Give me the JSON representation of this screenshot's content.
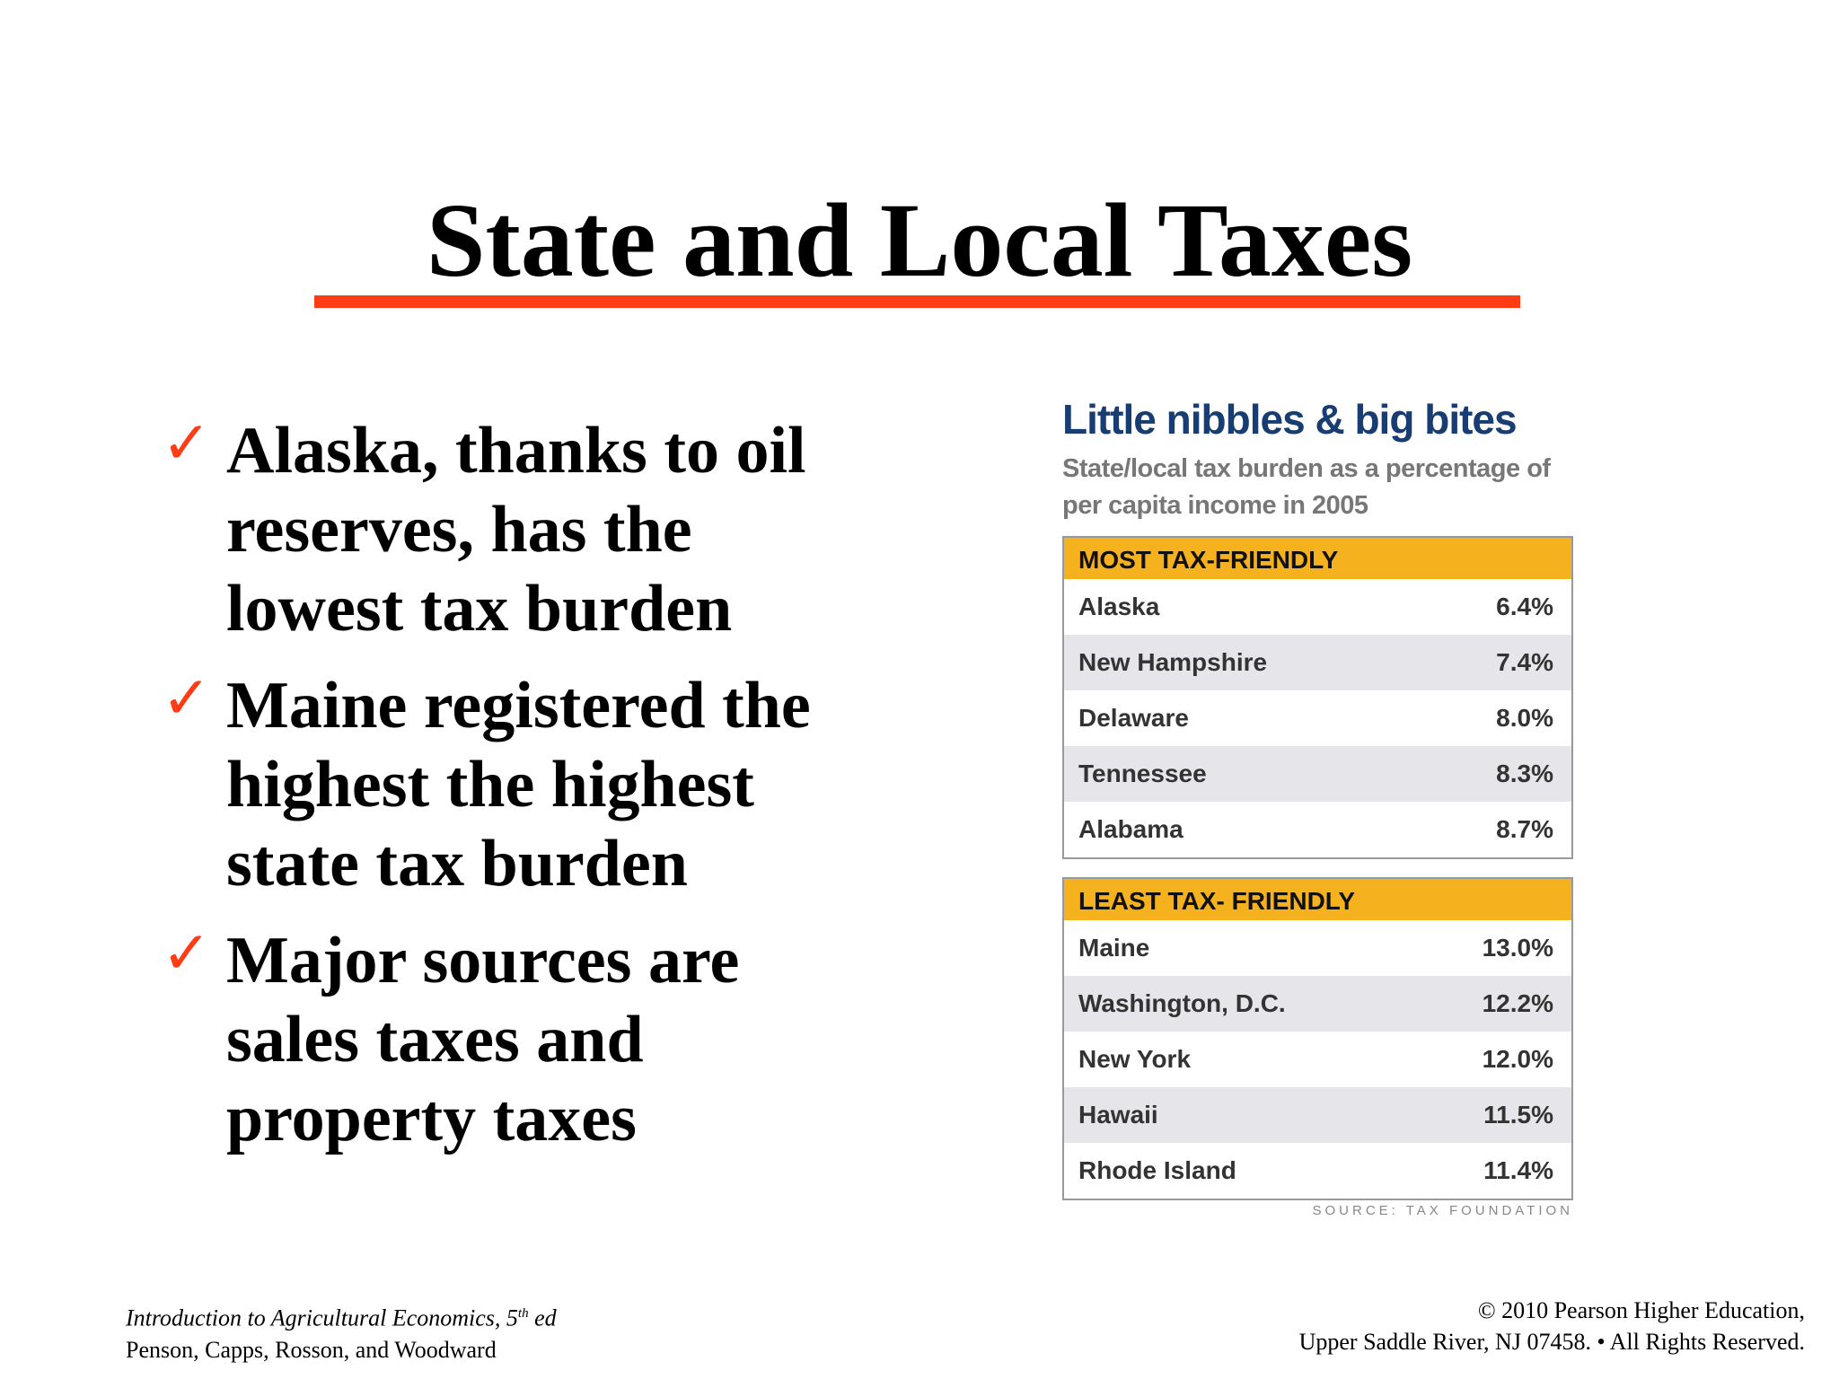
{
  "header": {
    "title": "State and Local Taxes"
  },
  "bullets": [
    "Alaska, thanks to oil reserves, has the lowest tax burden",
    "Maine registered the highest the highest state tax burden",
    "Major sources are sales taxes and property taxes"
  ],
  "figure": {
    "title": "Little nibbles & big bites",
    "subtitle": "State/local tax burden as a percentage of per capita income in 2005",
    "tables": [
      {
        "heading": "MOST TAX-FRIENDLY",
        "rows": [
          [
            "Alaska",
            "6.4%"
          ],
          [
            "New Hampshire",
            "7.4%"
          ],
          [
            "Delaware",
            "8.0%"
          ],
          [
            "Tennessee",
            "8.3%"
          ],
          [
            "Alabama",
            "8.7%"
          ]
        ]
      },
      {
        "heading": "LEAST TAX- FRIENDLY",
        "rows": [
          [
            "Maine",
            "13.0%"
          ],
          [
            "Washington, D.C.",
            "12.2%"
          ],
          [
            "New York",
            "12.0%"
          ],
          [
            "Hawaii",
            "11.5%"
          ],
          [
            "Rhode Island",
            "11.4%"
          ]
        ]
      }
    ],
    "source": "SOURCE: TAX FOUNDATION"
  },
  "footer": {
    "left_line1_main": "Introduction to Agricultural Economics, 5",
    "left_line1_sup": "th",
    "left_line1_end": " ed",
    "left_line2": "Penson, Capps, Rosson, and Woodward",
    "right_line1": "© 2010 Pearson Higher Education,",
    "right_line2": "Upper Saddle River, NJ 07458. • All Rights Reserved."
  }
}
